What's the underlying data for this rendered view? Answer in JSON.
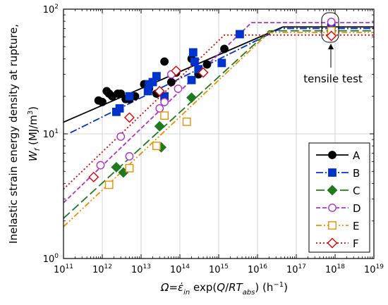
{
  "chart_data": {
    "type": "scatter",
    "xlabel": "Ω=ε̇in exp(Q/RTabs) (h⁻¹)",
    "ylabel": "Inelastic strain energy density at rupture, Wf (MJ/m³)",
    "xscale": "log",
    "yscale": "log",
    "xlim": [
      100000000000.0,
      1e+19
    ],
    "ylim": [
      1,
      100
    ],
    "grid": true,
    "legend_position": "lower-right",
    "annotation": "tensile test",
    "xticks": [
      "10^11",
      "10^12",
      "10^13",
      "10^14",
      "10^15",
      "10^16",
      "10^17",
      "10^18",
      "10^19"
    ],
    "yticks": [
      "10^0",
      "10^1",
      "10^2"
    ],
    "series": [
      {
        "name": "A",
        "color": "#000000",
        "marker": "circle-filled",
        "dash": "solid",
        "points": [
          [
            800000000000.0,
            18.5
          ],
          [
            1000000000000.0,
            18
          ],
          [
            1300000000000.0,
            22
          ],
          [
            1500000000000.0,
            21
          ],
          [
            1800000000000.0,
            20
          ],
          [
            2500000000000.0,
            21
          ],
          [
            3000000000000.0,
            21
          ],
          [
            4000000000000.0,
            19
          ],
          [
            5000000000000.0,
            19
          ],
          [
            7000000000000.0,
            20
          ],
          [
            12000000000000.0,
            25
          ],
          [
            16000000000000.0,
            23
          ],
          [
            25000000000000.0,
            21
          ],
          [
            40000000000000.0,
            38
          ],
          [
            60000000000000.0,
            26
          ],
          [
            80000000000000.0,
            31
          ],
          [
            200000000000000.0,
            40
          ],
          [
            300000000000000.0,
            30
          ],
          [
            500000000000000.0,
            36
          ],
          [
            1400000000000000.0,
            48
          ],
          [
            8e+17,
            75
          ]
        ],
        "fit": [
          [
            100000000000.0,
            12.4
          ],
          [
            4.5e+16,
            72
          ],
          [
            1e+19,
            72
          ]
        ]
      },
      {
        "name": "B",
        "color": "#0033cc",
        "marker": "square-filled",
        "dash": "dashdot",
        "points": [
          [
            2300000000000.0,
            15
          ],
          [
            2800000000000.0,
            16
          ],
          [
            5000000000000.0,
            20
          ],
          [
            15000000000000.0,
            22
          ],
          [
            16000000000000.0,
            25
          ],
          [
            20000000000000.0,
            26
          ],
          [
            25000000000000.0,
            29
          ],
          [
            40000000000000.0,
            20
          ],
          [
            200000000000000.0,
            27
          ],
          [
            220000000000000.0,
            45
          ],
          [
            240000000000000.0,
            38
          ],
          [
            300000000000000.0,
            33
          ],
          [
            1200000000000000.0,
            37
          ],
          [
            3500000000000000.0,
            63
          ],
          [
            8e+17,
            70
          ]
        ],
        "fit": [
          [
            150000000000.0,
            10.2
          ],
          [
            4e+16,
            70
          ],
          [
            1e+19,
            70
          ]
        ]
      },
      {
        "name": "C",
        "color": "#1f7a1f",
        "marker": "diamond-filled",
        "dash": "longdash",
        "points": [
          [
            2300000000000.0,
            5.4
          ],
          [
            3500000000000.0,
            4.9
          ],
          [
            30000000000000.0,
            11.5
          ],
          [
            33000000000000.0,
            7.8
          ],
          [
            200000000000000.0,
            19.5
          ],
          [
            8e+17,
            67
          ]
        ],
        "fit": [
          [
            100000000000.0,
            2.1
          ],
          [
            2e+16,
            67
          ],
          [
            1e+19,
            67
          ]
        ]
      },
      {
        "name": "D",
        "color": "#b030d0",
        "marker": "circle-open",
        "dash": "dash",
        "points": [
          [
            900000000000.0,
            5.6
          ],
          [
            3000000000000.0,
            9.5
          ],
          [
            5000000000000.0,
            6.6
          ],
          [
            30000000000000.0,
            16
          ],
          [
            40000000000000.0,
            18
          ],
          [
            60000000000000.0,
            30
          ],
          [
            90000000000000.0,
            23
          ],
          [
            8e+17,
            79
          ]
        ],
        "fit": [
          [
            100000000000.0,
            2.8
          ],
          [
            7000000000000000.0,
            78
          ],
          [
            1e+19,
            78
          ]
        ]
      },
      {
        "name": "E",
        "color": "#f08c00",
        "marker": "square-open",
        "dash": "dashdotdot",
        "points": [
          [
            1500000000000.0,
            3.9
          ],
          [
            5000000000000.0,
            5.3
          ],
          [
            25000000000000.0,
            8
          ],
          [
            40000000000000.0,
            14
          ],
          [
            150000000000000.0,
            12.5
          ],
          [
            8e+17,
            67
          ]
        ],
        "fit": [
          [
            100000000000.0,
            1.8
          ],
          [
            2e+16,
            65
          ],
          [
            1e+19,
            65
          ]
        ]
      },
      {
        "name": "F",
        "color": "#e00000",
        "marker": "diamond-open",
        "dash": "dot",
        "points": [
          [
            600000000000.0,
            4.5
          ],
          [
            5000000000000.0,
            13.5
          ],
          [
            30000000000000.0,
            22
          ],
          [
            80000000000000.0,
            32
          ],
          [
            400000000000000.0,
            31
          ],
          [
            8e+17,
            61
          ]
        ],
        "fit": [
          [
            100000000000.0,
            3.6
          ],
          [
            1400000000000000.0,
            62
          ],
          [
            1e+19,
            62
          ]
        ]
      }
    ]
  }
}
